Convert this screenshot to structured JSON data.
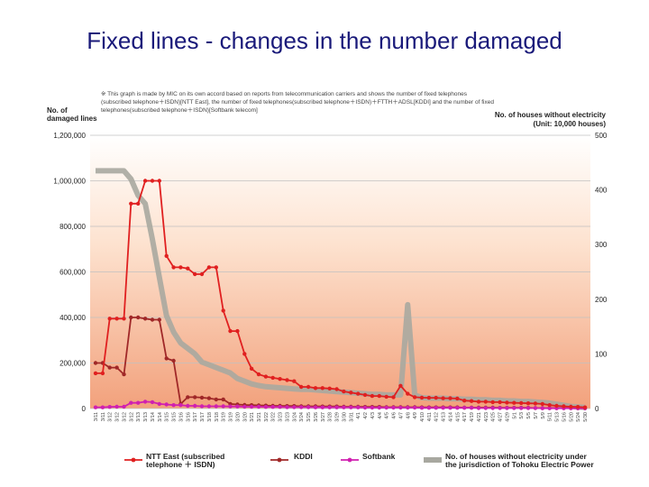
{
  "slide": {
    "title": "Fixed lines - changes in the number damaged"
  },
  "chart_data": {
    "type": "line",
    "note_lines": [
      "※ This graph is made by MIC on its own accord based on reports from telecommunication carriers and shows the number of fixed telephones",
      "(subscribed telephone＋ISDN)[NTT East], the number of fixed telephones(subscribed telephone＋ISDN)＋FTTH＋ADSL[KDDI] and the number of fixed",
      "telephones(subscribed telephone＋ISDN)[Softbank telecom]"
    ],
    "ylabel_left": [
      "No. of",
      "damaged lines"
    ],
    "ylabel_right": [
      "No. of houses without electricity",
      "(Unit: 10,000 houses)"
    ],
    "y_left_ticks": [
      "0",
      "200,000",
      "400,000",
      "600,000",
      "800,000",
      "1,000,000",
      "1,200,000"
    ],
    "y_right_ticks": [
      "0",
      "100",
      "200",
      "300",
      "400",
      "500"
    ],
    "ylim_left": [
      0,
      1200000
    ],
    "ylim_right": [
      0,
      500
    ],
    "grid": "horizontal",
    "legend_position": "bottom",
    "x": [
      "3/11",
      "3/11",
      "3/12",
      "3/12",
      "3/12",
      "3/12",
      "3/13",
      "3/13",
      "3/14",
      "3/14",
      "3/15",
      "3/15",
      "3/16",
      "3/16",
      "3/17",
      "3/17",
      "3/18",
      "3/18",
      "3/19",
      "3/19",
      "3/20",
      "3/20",
      "3/21",
      "3/21",
      "3/22",
      "3/22",
      "3/23",
      "3/23",
      "3/24",
      "3/24",
      "3/25",
      "3/26",
      "3/27",
      "3/28",
      "3/29",
      "3/30",
      "3/31",
      "4/1",
      "4/2",
      "4/3",
      "4/4",
      "4/5",
      "4/6",
      "4/7",
      "4/8",
      "4/9",
      "4/10",
      "4/11",
      "4/12",
      "4/13",
      "4/14",
      "4/15",
      "4/17",
      "4/19",
      "4/21",
      "4/23",
      "4/25",
      "4/27",
      "4/29",
      "5/1",
      "5/3",
      "5/5",
      "5/7",
      "5/9",
      "5/11",
      "5/13",
      "5/16",
      "5/20",
      "5/24",
      "5/30"
    ],
    "series": [
      {
        "name": "NTT East (subscribed telephone ＋ ISDN)",
        "axis": "left",
        "color": "#e02020",
        "values": [
          155000,
          155000,
          395000,
          395000,
          395000,
          900000,
          900000,
          1000000,
          1000000,
          1000000,
          670000,
          620000,
          620000,
          615000,
          590000,
          590000,
          620000,
          620000,
          430000,
          340000,
          340000,
          240000,
          175000,
          150000,
          140000,
          135000,
          130000,
          125000,
          120000,
          95000,
          95000,
          90000,
          90000,
          88000,
          85000,
          75000,
          70000,
          65000,
          60000,
          55000,
          55000,
          52000,
          50000,
          100000,
          65000,
          50000,
          48000,
          47000,
          47000,
          45000,
          45000,
          44000,
          35000,
          33000,
          30000,
          30000,
          28000,
          28000,
          26000,
          25000,
          24000,
          23000,
          22000,
          20000,
          15000,
          12000,
          10000,
          8000,
          7000,
          5000
        ]
      },
      {
        "name": "KDDI",
        "axis": "left",
        "color": "#a02828",
        "values": [
          200000,
          200000,
          180000,
          180000,
          150000,
          400000,
          400000,
          395000,
          390000,
          390000,
          220000,
          210000,
          20000,
          50000,
          50000,
          48000,
          45000,
          40000,
          40000,
          20000,
          18000,
          16000,
          15000,
          14000,
          13000,
          12000,
          12000,
          11000,
          11000,
          10000,
          10000,
          10000,
          9000,
          9000,
          9000,
          8000,
          8000,
          8000,
          7000,
          7000,
          7000,
          6000,
          6000,
          6000,
          6000,
          6000,
          5000,
          5000,
          5000,
          5000,
          5000,
          5000,
          4000,
          4000,
          4000,
          4000,
          4000,
          3000,
          3000,
          3000,
          3000,
          3000,
          2000,
          2000,
          2000,
          2000,
          2000,
          2000,
          1000,
          1000
        ]
      },
      {
        "name": "Softbank",
        "axis": "left",
        "color": "#d020b0",
        "values": [
          5000,
          5000,
          7000,
          8000,
          8000,
          25000,
          25000,
          30000,
          28000,
          20000,
          18000,
          15000,
          15000,
          12000,
          12000,
          10000,
          10000,
          10000,
          10000,
          9000,
          9000,
          8000,
          8000,
          8000,
          7000,
          7000,
          7000,
          6000,
          6000,
          6000,
          6000,
          5000,
          5000,
          5000,
          5000,
          5000,
          5000,
          5000,
          4000,
          4000,
          4000,
          4000,
          4000,
          4000,
          4000,
          4000,
          3000,
          3000,
          3000,
          3000,
          3000,
          3000,
          3000,
          3000,
          2000,
          2000,
          2000,
          2000,
          2000,
          2000,
          2000,
          2000,
          2000,
          1000,
          1000,
          1000,
          1000,
          1000,
          1000,
          1000
        ]
      },
      {
        "name": "No. of houses without electricity under the jurisdiction of Tohoku Electric Power",
        "axis": "right",
        "color": "#a8a8a0",
        "values": [
          435,
          435,
          435,
          435,
          435,
          420,
          390,
          375,
          310,
          240,
          170,
          140,
          120,
          110,
          100,
          85,
          80,
          75,
          70,
          65,
          55,
          50,
          45,
          42,
          40,
          39,
          38,
          37,
          36,
          35,
          35,
          34,
          33,
          32,
          31,
          30,
          29,
          28,
          27,
          26,
          26,
          25,
          25,
          25,
          190,
          25,
          20,
          19,
          19,
          19,
          18,
          18,
          17,
          17,
          16,
          16,
          15,
          15,
          14,
          14,
          13,
          13,
          12,
          11,
          10,
          8,
          6,
          4,
          3,
          2
        ]
      }
    ]
  }
}
